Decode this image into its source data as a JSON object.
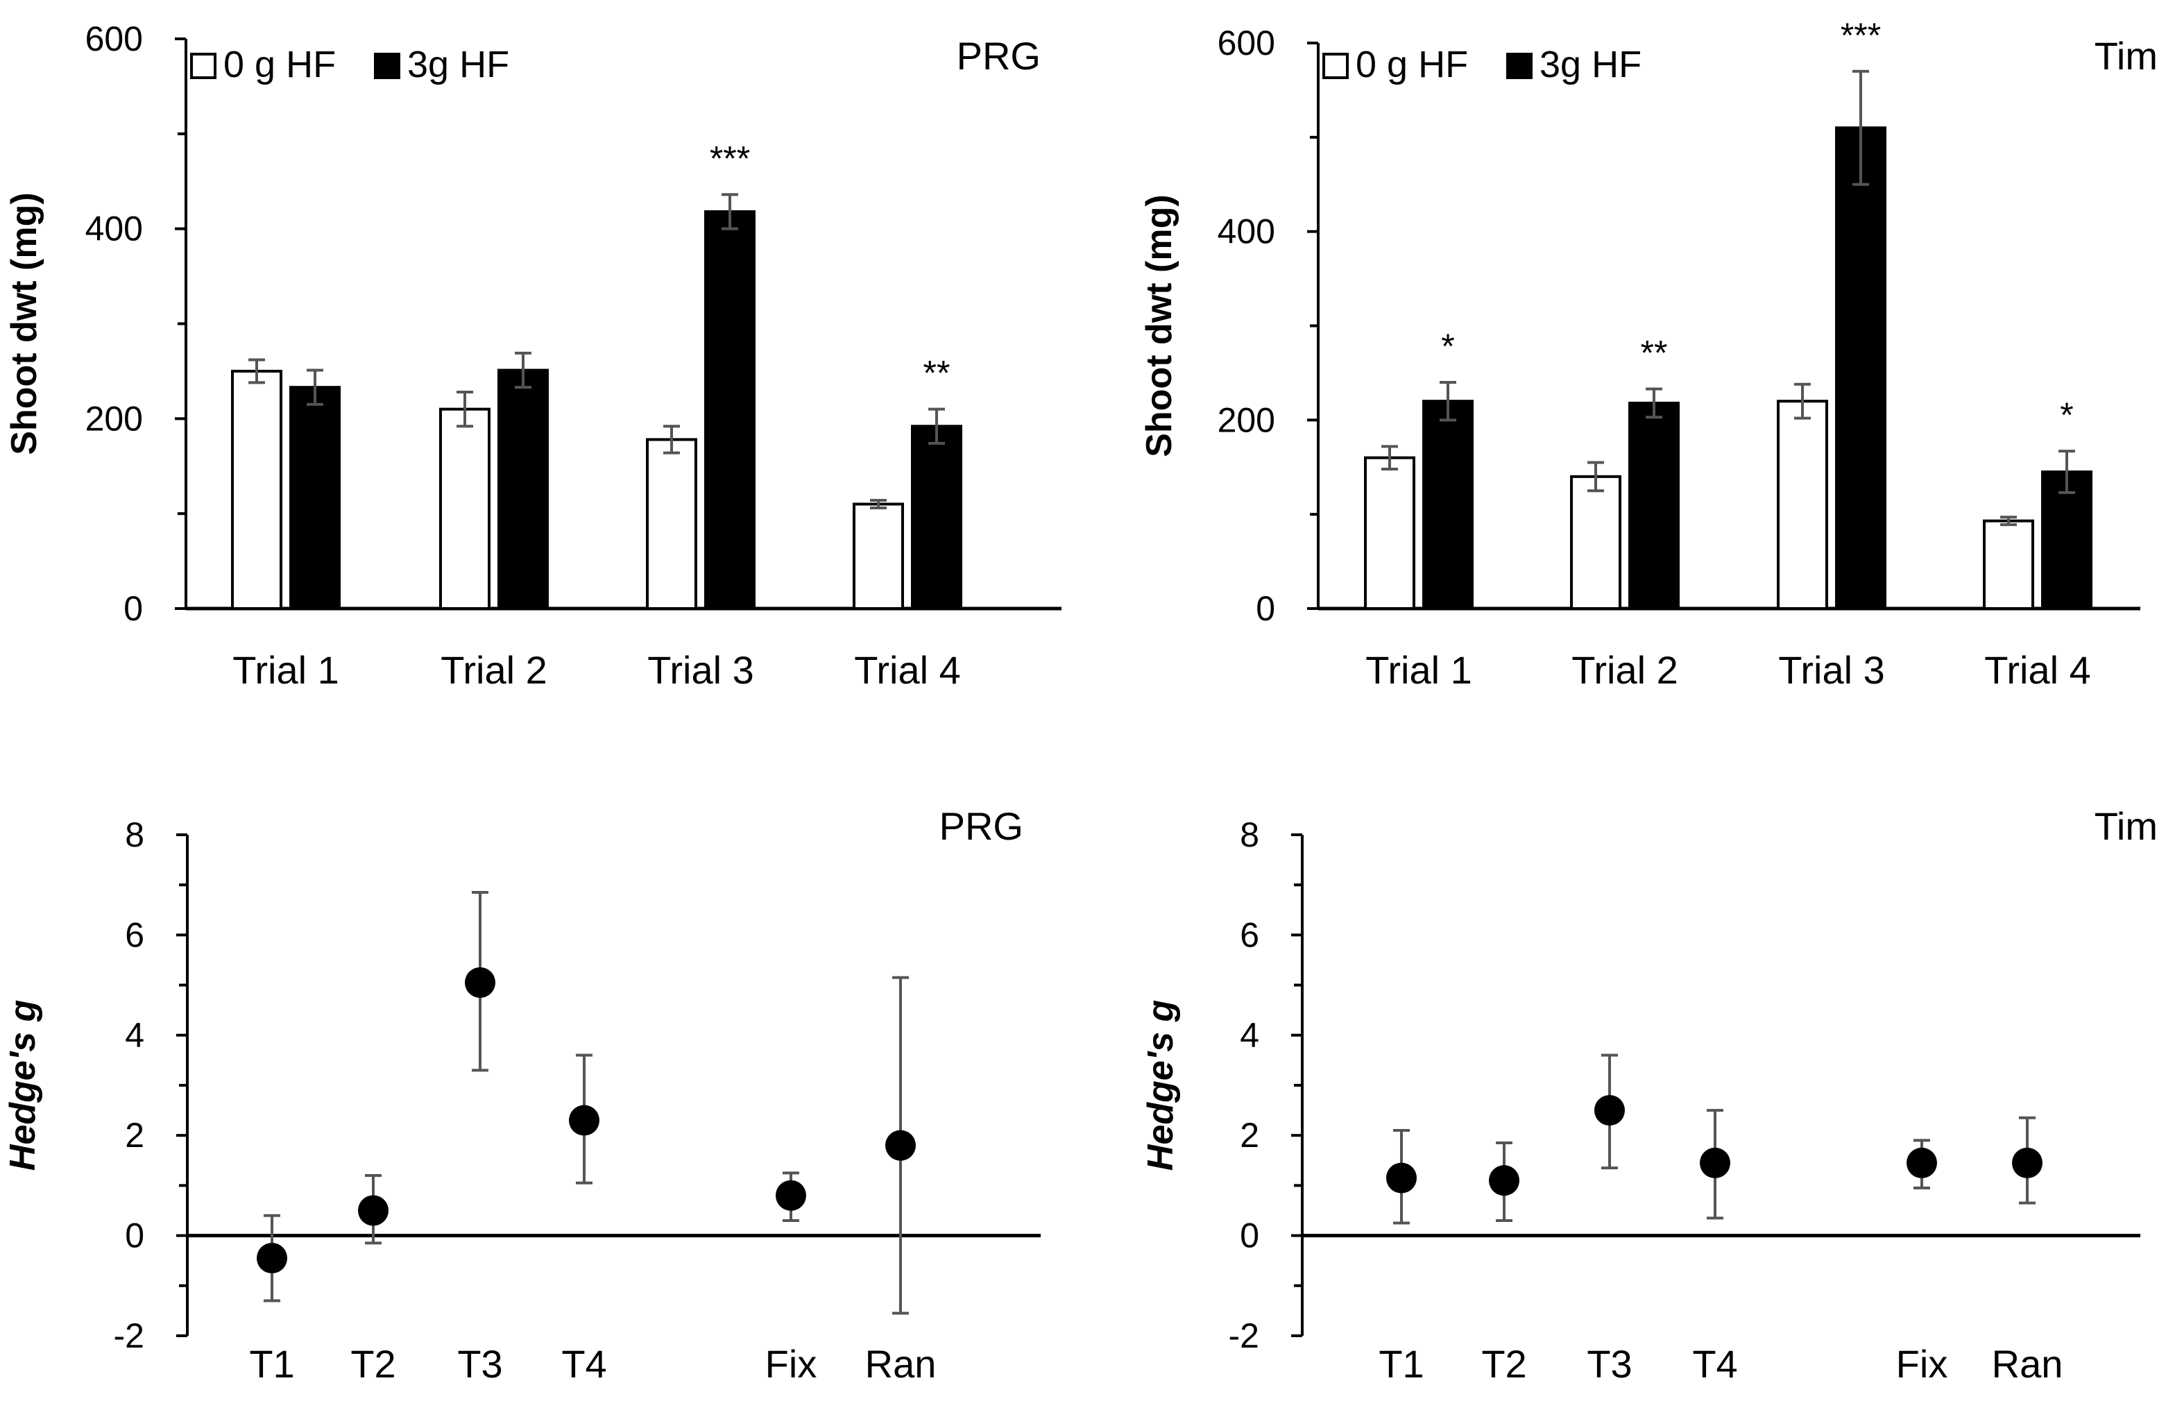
{
  "chart_data": [
    {
      "type": "bar",
      "panel_title": "PRG",
      "ylabel": "Shoot dwt (mg)",
      "ylim": [
        0,
        600
      ],
      "yticks": [
        0,
        200,
        400,
        600
      ],
      "categories": [
        "Trial 1",
        "Trial 2",
        "Trial 3",
        "Trial 4"
      ],
      "series": [
        {
          "name": "0 g HF",
          "color": "#ffffff",
          "values": [
            250,
            210,
            178,
            110
          ],
          "errors": [
            12,
            18,
            14,
            4
          ]
        },
        {
          "name": "3g HF",
          "color": "#000000",
          "values": [
            233,
            251,
            418,
            192
          ],
          "errors": [
            18,
            18,
            18,
            18
          ]
        }
      ],
      "significance": [
        "",
        "",
        "***",
        "**"
      ],
      "legend": {
        "position": "top-left"
      }
    },
    {
      "type": "bar",
      "panel_title": "Tim",
      "ylabel": "Shoot dwt (mg)",
      "ylim": [
        0,
        600
      ],
      "yticks": [
        0,
        200,
        400,
        600
      ],
      "categories": [
        "Trial 1",
        "Trial 2",
        "Trial 3",
        "Trial 4"
      ],
      "series": [
        {
          "name": "0 g HF",
          "color": "#ffffff",
          "values": [
            160,
            140,
            220,
            93
          ],
          "errors": [
            12,
            15,
            18,
            4
          ]
        },
        {
          "name": "3g HF",
          "color": "#000000",
          "values": [
            220,
            218,
            510,
            145
          ],
          "errors": [
            20,
            15,
            60,
            22
          ]
        }
      ],
      "significance": [
        "*",
        "**",
        "***",
        "*"
      ],
      "legend": {
        "position": "top-left"
      }
    },
    {
      "type": "scatter",
      "panel_title": "PRG",
      "ylabel": "Hedge's g",
      "ylim": [
        -2,
        8
      ],
      "yticks": [
        -2,
        0,
        2,
        4,
        6,
        8
      ],
      "categories": [
        "T1",
        "T2",
        "T3",
        "T4",
        "Fix",
        "Ran"
      ],
      "points": [
        {
          "label": "T1",
          "value": -0.45,
          "lower": -1.3,
          "upper": 0.4
        },
        {
          "label": "T2",
          "value": 0.5,
          "lower": -0.15,
          "upper": 1.2
        },
        {
          "label": "T3",
          "value": 5.05,
          "lower": 3.3,
          "upper": 6.85
        },
        {
          "label": "T4",
          "value": 2.3,
          "lower": 1.05,
          "upper": 3.6
        },
        {
          "label": "Fix",
          "value": 0.8,
          "lower": 0.3,
          "upper": 1.25
        },
        {
          "label": "Ran",
          "value": 1.8,
          "lower": -1.55,
          "upper": 5.15
        }
      ]
    },
    {
      "type": "scatter",
      "panel_title": "Tim",
      "ylabel": "Hedge's g",
      "ylim": [
        -2,
        8
      ],
      "yticks": [
        -2,
        0,
        2,
        4,
        6,
        8
      ],
      "categories": [
        "T1",
        "T2",
        "T3",
        "T4",
        "Fix",
        "Ran"
      ],
      "points": [
        {
          "label": "T1",
          "value": 1.15,
          "lower": 0.25,
          "upper": 2.1
        },
        {
          "label": "T2",
          "value": 1.1,
          "lower": 0.3,
          "upper": 1.85
        },
        {
          "label": "T3",
          "value": 2.5,
          "lower": 1.35,
          "upper": 3.6
        },
        {
          "label": "T4",
          "value": 1.45,
          "lower": 0.35,
          "upper": 2.5
        },
        {
          "label": "Fix",
          "value": 1.45,
          "lower": 0.95,
          "upper": 1.9
        },
        {
          "label": "Ran",
          "value": 1.45,
          "lower": 0.65,
          "upper": 2.35
        }
      ]
    }
  ]
}
